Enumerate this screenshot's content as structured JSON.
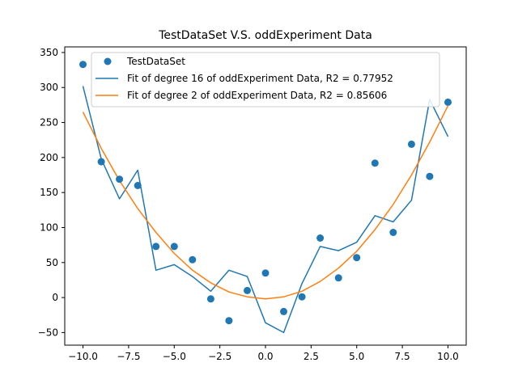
{
  "chart_data": {
    "type": "scatter",
    "title": "TestDataSet V.S. oddExperiment Data",
    "xlabel": "",
    "ylabel": "",
    "xlim": [
      -11,
      11
    ],
    "ylim": [
      -68,
      358
    ],
    "x_ticks": [
      -10,
      -7.5,
      -5,
      -2.5,
      0,
      2.5,
      5,
      7.5,
      10
    ],
    "x_tick_labels": [
      "−10.0",
      "−7.5",
      "−5.0",
      "−2.5",
      "0.0",
      "2.5",
      "5.0",
      "7.5",
      "10.0"
    ],
    "y_ticks": [
      -50,
      0,
      50,
      100,
      150,
      200,
      250,
      300,
      350
    ],
    "y_tick_labels": [
      "−50",
      "0",
      "50",
      "100",
      "150",
      "200",
      "250",
      "300",
      "350"
    ],
    "grid": false,
    "legend_position": "top-center",
    "colors": {
      "blue": "#1f77b4",
      "orange": "#ff7f0e"
    },
    "series": [
      {
        "name": "TestDataSet",
        "kind": "scatter",
        "color": "#1f77b4",
        "x": [
          -10,
          -9,
          -8,
          -7,
          -6,
          -5,
          -4,
          -3,
          -2,
          -1,
          0,
          1,
          2,
          3,
          4,
          5,
          6,
          7,
          8,
          9,
          10
        ],
        "y": [
          333,
          194,
          169,
          160,
          73,
          73,
          54,
          -2,
          -33,
          10,
          35,
          -20,
          1,
          85,
          28,
          57,
          192,
          93,
          219,
          173,
          279
        ]
      },
      {
        "name": "Fit of degree 16 of oddExperiment Data, R2 = 0.77952",
        "kind": "line",
        "color": "#1f77b4",
        "x": [
          -10,
          -9,
          -8,
          -7,
          -6,
          -5,
          -4,
          -3,
          -2,
          -1,
          0,
          1,
          2,
          3,
          4,
          5,
          6,
          7,
          8,
          9,
          10
        ],
        "y": [
          302,
          198,
          141,
          182,
          39,
          47,
          30,
          9,
          39,
          30,
          -36,
          -50,
          20,
          73,
          67,
          79,
          117,
          108,
          139,
          283,
          230
        ]
      },
      {
        "name": "Fit of degree 2 of oddExperiment Data, R2 = 0.85606",
        "kind": "line",
        "color": "#ff7f0e",
        "x": [
          -10,
          -9,
          -8,
          -7,
          -6,
          -5,
          -4,
          -3,
          -2,
          -1,
          0,
          1,
          2,
          3,
          4,
          5,
          6,
          7,
          8,
          9,
          10
        ],
        "y": [
          265,
          213,
          167,
          127,
          93,
          63,
          39,
          21,
          8,
          1,
          -2,
          1,
          9,
          23,
          42,
          66,
          97,
          133,
          175,
          222,
          274
        ]
      }
    ]
  }
}
